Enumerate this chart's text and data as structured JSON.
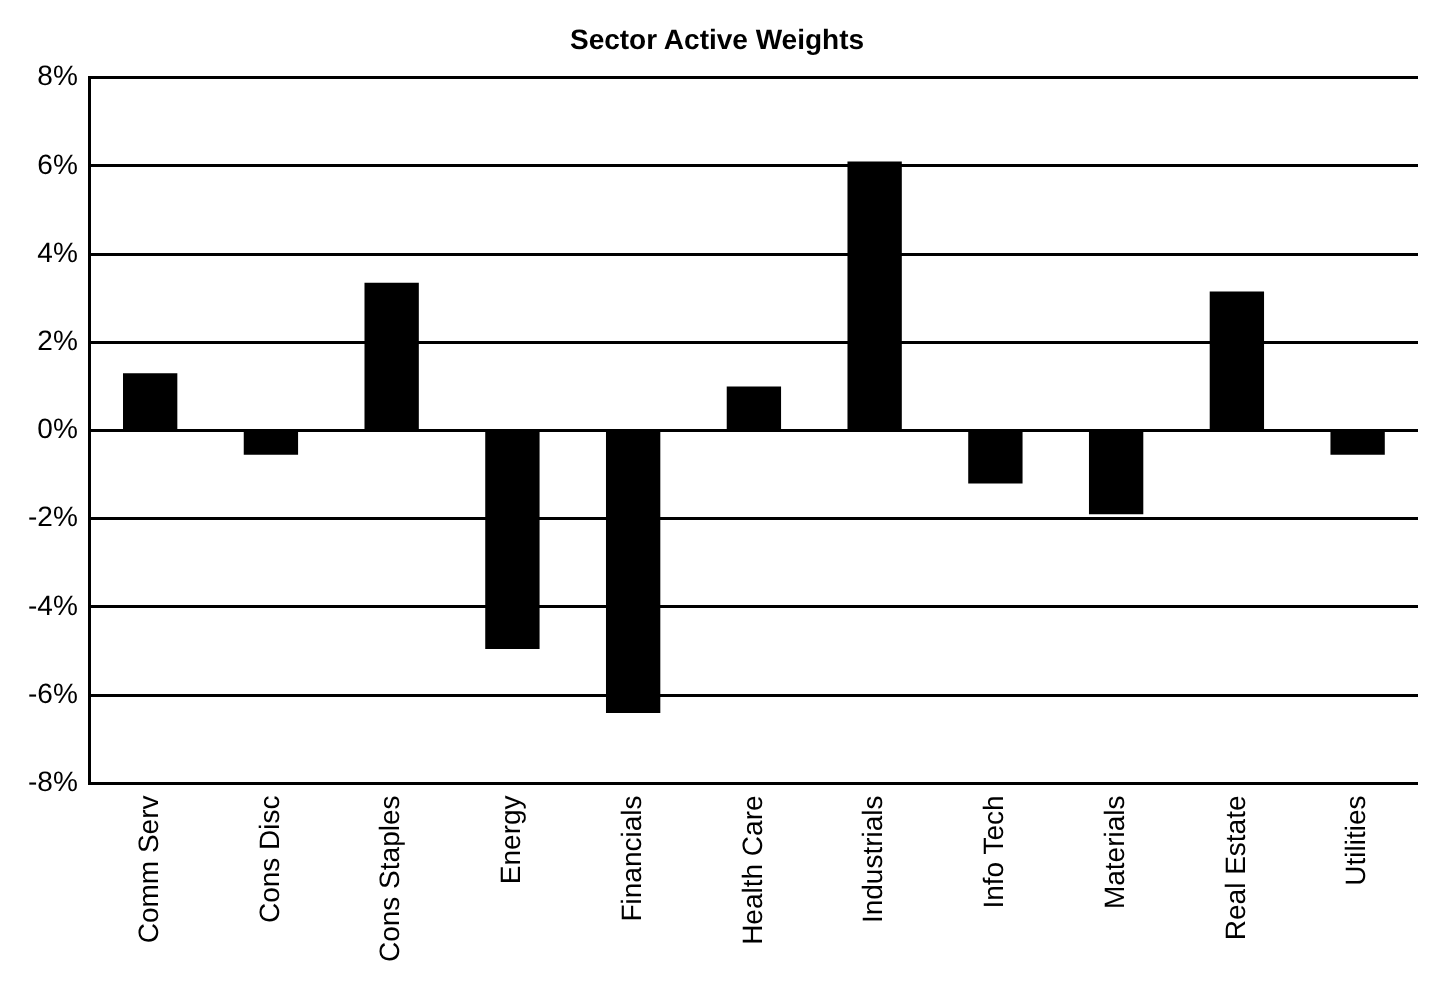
{
  "chart_data": {
    "type": "bar",
    "title": "Sector Active Weights",
    "categories": [
      "Comm Serv",
      "Cons Disc",
      "Cons Staples",
      "Energy",
      "Financials",
      "Health Care",
      "Industrials",
      "Info Tech",
      "Materials",
      "Real Estate",
      "Utilities"
    ],
    "values": [
      1.3,
      -0.55,
      3.35,
      -4.95,
      -6.4,
      1.0,
      6.1,
      -1.2,
      -1.9,
      3.15,
      -0.55
    ],
    "color": "#000000",
    "ylim": [
      -8,
      8
    ],
    "yticks": [
      {
        "value": -8,
        "label": "-8%"
      },
      {
        "value": -6,
        "label": "-6%"
      },
      {
        "value": -4,
        "label": "-4%"
      },
      {
        "value": -2,
        "label": "-2%"
      },
      {
        "value": 0,
        "label": "0%"
      },
      {
        "value": 2,
        "label": "2%"
      },
      {
        "value": 4,
        "label": "4%"
      },
      {
        "value": 6,
        "label": "6%"
      },
      {
        "value": 8,
        "label": "8%"
      }
    ],
    "grid": "y",
    "legend": false
  }
}
